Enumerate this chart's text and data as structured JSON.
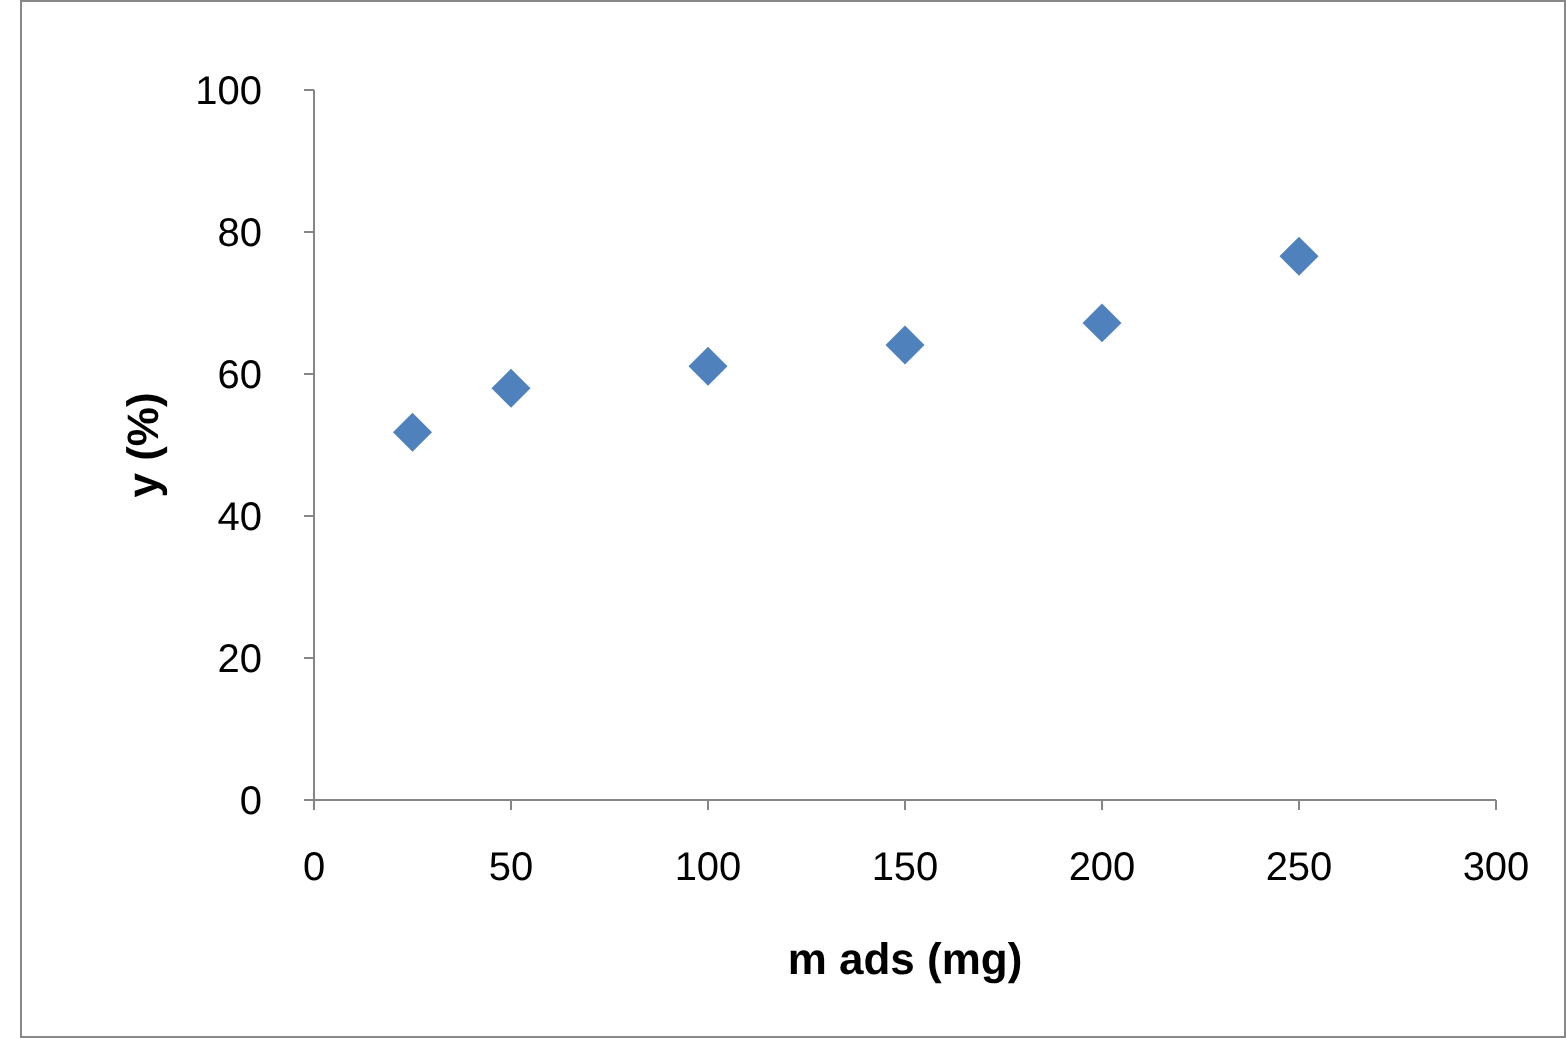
{
  "chart_data": {
    "type": "scatter",
    "xlabel": "m ads (mg)",
    "ylabel": "y (%)",
    "x": [
      25,
      50,
      100,
      150,
      200,
      250
    ],
    "series": [
      {
        "color": "#4f81bd",
        "values": [
          51.8,
          58,
          61.1,
          64.1,
          67.2,
          76.6
        ]
      }
    ],
    "xlim": [
      0,
      300
    ],
    "xticks": [
      0,
      50,
      100,
      150,
      200,
      250,
      300
    ],
    "ylim": [
      0,
      100
    ],
    "yticks": [
      0,
      20,
      40,
      60,
      80,
      100
    ],
    "marker": "diamond",
    "grid": false
  }
}
